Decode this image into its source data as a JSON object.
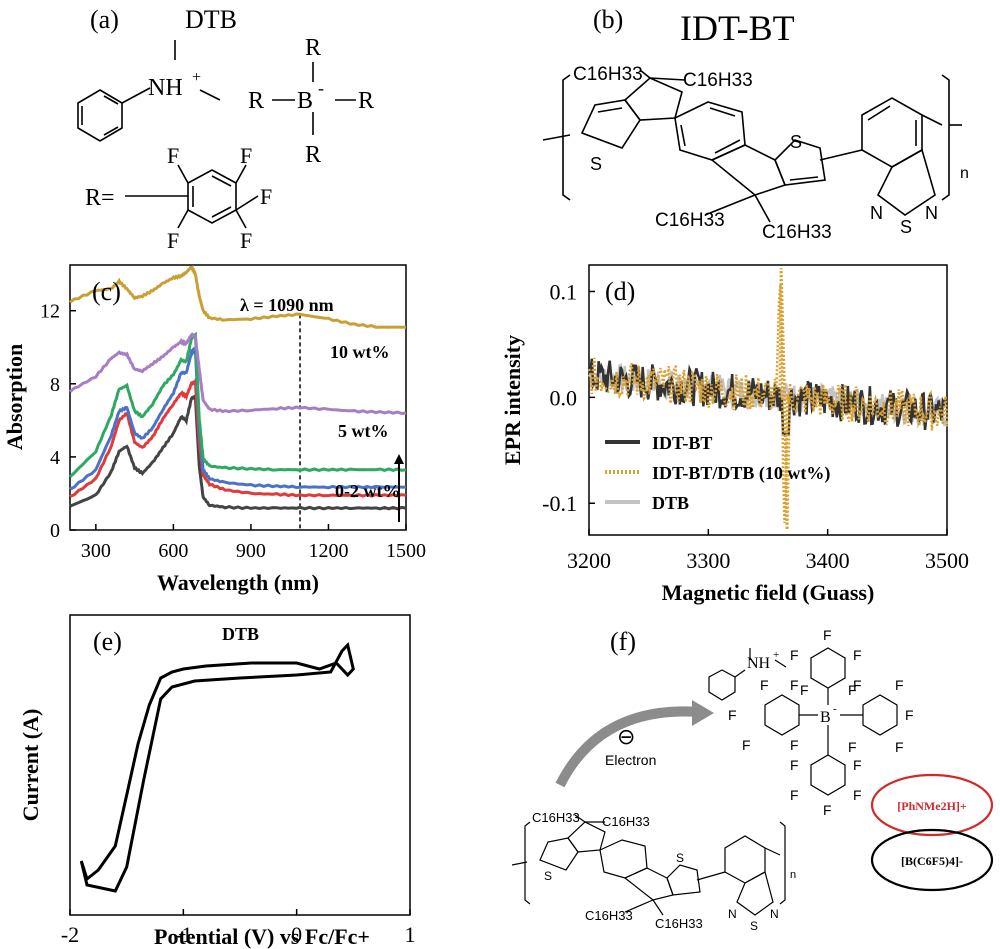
{
  "panels": {
    "a": {
      "label": "(a)",
      "title": "DTB",
      "cation": "NH",
      "cation_charge": "+",
      "boron": "B",
      "boron_charge": "-",
      "r_top": "R",
      "r_left": "R",
      "r_right": "R",
      "r_bottom": "R",
      "r_def": "R=",
      "fluorines": [
        "F",
        "F",
        "F",
        "F",
        "F"
      ]
    },
    "b": {
      "label": "(b)",
      "title": "IDT-BT",
      "chains": [
        "C16H33",
        "C16H33",
        "C16H33",
        "C16H33"
      ],
      "sulfurs": [
        "S",
        "S"
      ],
      "btd_n_left": "N",
      "btd_s": "S",
      "btd_n_right": "N",
      "repeat": "n"
    },
    "e": {
      "label": "(e)",
      "title": "DTB",
      "xlabel": "Potential (V) vs Fc/Fc+",
      "ylabel": "Current (A)",
      "xticks": [
        "-2",
        "-1",
        "0",
        "1"
      ]
    },
    "f": {
      "label": "(f)",
      "cation_text": "NH",
      "cation_charge": "+",
      "boron": "B",
      "boron_charge": "-",
      "fluorines": [
        "F",
        "F",
        "F",
        "F",
        "F",
        "F",
        "F",
        "F",
        "F",
        "F",
        "F",
        "F",
        "F",
        "F",
        "F",
        "F",
        "F",
        "F",
        "F",
        "F"
      ],
      "electron_symbol": "⊖",
      "electron_label": "Electron",
      "cation_label": "[PhNMe2H]+",
      "anion_label": "[B(C6F5)4]-",
      "chains": [
        "C16H33",
        "C16H33",
        "C16H33",
        "C16H33"
      ],
      "sulfurs": [
        "S",
        "S"
      ],
      "btd_n_left": "N",
      "btd_s": "S",
      "btd_n_right": "N",
      "repeat": "n"
    }
  },
  "chart_data": [
    {
      "panel": "(c)",
      "type": "line",
      "xlabel": "Wavelength (nm)",
      "ylabel": "Absorption",
      "xlim": [
        200,
        1500
      ],
      "ylim": [
        0,
        14.5
      ],
      "xticks": [
        300,
        600,
        900,
        1200,
        1500
      ],
      "yticks": [
        0,
        4,
        8,
        12
      ],
      "annotation": "λ = 1090 nm",
      "marker_x": 1090,
      "labels": [
        "10 wt%",
        "5 wt%",
        "0-2 wt%"
      ],
      "x": [
        200,
        300,
        360,
        390,
        420,
        450,
        480,
        520,
        560,
        600,
        630,
        650,
        670,
        685,
        700,
        715,
        740,
        800,
        900,
        1000,
        1090,
        1200,
        1300,
        1400,
        1500
      ],
      "series": [
        {
          "color": "#444444",
          "values": [
            1.3,
            1.9,
            3.2,
            4.3,
            4.6,
            3.4,
            3.1,
            3.7,
            4.5,
            5.3,
            6.2,
            6.0,
            7.2,
            7.3,
            3.5,
            1.8,
            1.35,
            1.25,
            1.2,
            1.2,
            1.2,
            1.2,
            1.2,
            1.2,
            1.2
          ]
        },
        {
          "color": "#e03b3b",
          "values": [
            1.8,
            2.8,
            4.6,
            6.0,
            6.4,
            4.8,
            4.5,
            5.1,
            6.1,
            6.9,
            7.5,
            7.3,
            8.0,
            8.1,
            4.8,
            3.0,
            2.5,
            2.2,
            2.0,
            1.95,
            1.9,
            1.9,
            1.9,
            1.9,
            1.9
          ]
        },
        {
          "color": "#4a72c8",
          "values": [
            2.2,
            3.3,
            5.2,
            6.5,
            6.7,
            5.3,
            5.0,
            5.6,
            6.6,
            7.5,
            8.6,
            8.6,
            9.7,
            9.9,
            5.6,
            3.3,
            2.8,
            2.6,
            2.45,
            2.4,
            2.35,
            2.35,
            2.35,
            2.35,
            2.35
          ]
        },
        {
          "color": "#2ea862",
          "values": [
            2.9,
            4.3,
            6.3,
            7.7,
            7.9,
            6.5,
            6.2,
            6.9,
            7.9,
            8.5,
            9.3,
            9.2,
            10.5,
            10.7,
            6.1,
            3.9,
            3.5,
            3.4,
            3.35,
            3.3,
            3.3,
            3.3,
            3.3,
            3.3,
            3.3
          ]
        },
        {
          "color": "#a77dc4",
          "values": [
            7.6,
            8.4,
            9.4,
            9.7,
            9.6,
            8.8,
            8.7,
            9.1,
            9.5,
            10.0,
            10.3,
            10.2,
            10.7,
            10.6,
            8.8,
            7.1,
            6.6,
            6.5,
            6.55,
            6.65,
            6.7,
            6.6,
            6.5,
            6.45,
            6.4
          ]
        },
        {
          "color": "#c9a035",
          "values": [
            12.5,
            13.1,
            13.2,
            13.6,
            13.2,
            12.7,
            12.8,
            13.1,
            13.5,
            13.8,
            13.9,
            14.1,
            14.4,
            14.0,
            12.8,
            12.0,
            11.6,
            11.5,
            11.55,
            11.7,
            11.8,
            11.55,
            11.25,
            11.1,
            11.1
          ]
        }
      ]
    },
    {
      "panel": "(d)",
      "type": "line",
      "xlabel": "Magnetic field (Guass)",
      "ylabel": "EPR intensity",
      "xlim": [
        3200,
        3500
      ],
      "ylim": [
        -0.13,
        0.125
      ],
      "xticks": [
        3200,
        3300,
        3400,
        3500
      ],
      "yticks": [
        0.1,
        0.0,
        -0.1
      ],
      "ytick_labels": [
        "0.1",
        "0.0",
        "-0.1"
      ],
      "legend": [
        "IDT-BT",
        "IDT-BT/DTB (10 wt%)",
        "DTB"
      ],
      "legend_position": "bottom-left",
      "colors": [
        "#333333",
        "#d9a032",
        "#c4c4c4"
      ],
      "trend_x": [
        3200,
        3500
      ],
      "trend_y": [
        0.02,
        -0.015
      ],
      "noise_amplitude": 0.018,
      "feature_center": 3362,
      "feature_max": 0.122,
      "feature_min": -0.125
    },
    {
      "panel": "(e)",
      "type": "line",
      "xlim": [
        -2,
        1
      ],
      "x": [
        0.5,
        0.45,
        0.35,
        0.2,
        0.0,
        -0.4,
        -0.8,
        -1.0,
        -1.1,
        -1.2,
        -1.3,
        -1.4,
        -1.5,
        -1.6,
        -1.75,
        -1.85,
        -1.9,
        -1.85,
        -1.6,
        -1.5,
        -1.35,
        -1.2,
        -1.1,
        -0.9,
        -0.5,
        0.0,
        0.3,
        0.4,
        0.45,
        0.5
      ],
      "y": [
        0.82,
        0.8,
        0.84,
        0.82,
        0.84,
        0.84,
        0.83,
        0.82,
        0.81,
        0.79,
        0.7,
        0.57,
        0.4,
        0.23,
        0.15,
        0.12,
        0.18,
        0.1,
        0.08,
        0.16,
        0.45,
        0.72,
        0.76,
        0.78,
        0.79,
        0.8,
        0.81,
        0.88,
        0.9,
        0.82
      ]
    }
  ]
}
